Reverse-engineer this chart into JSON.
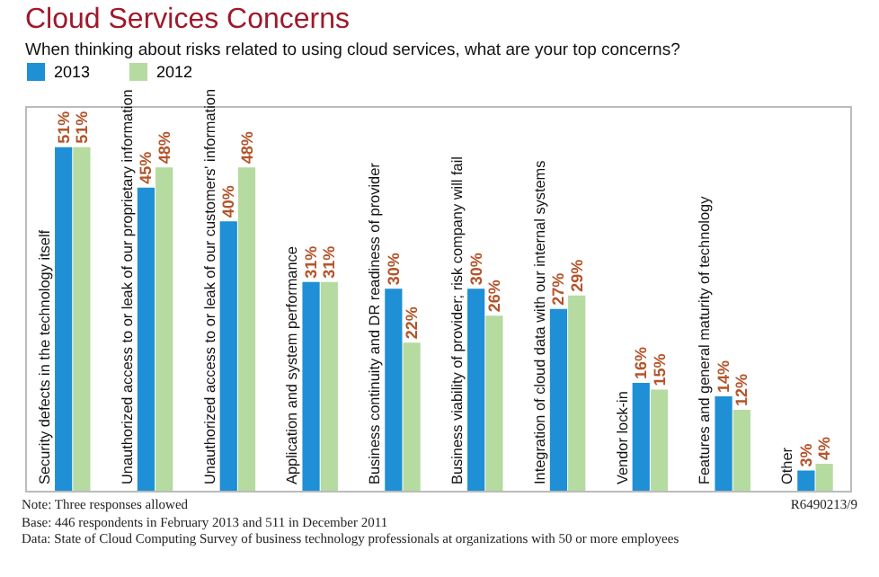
{
  "chart_data": {
    "type": "bar",
    "title": "Cloud Services Concerns",
    "subtitle": "When thinking about risks related to using cloud services, what are your top concerns?",
    "categories": [
      "Security defects in the technology itself",
      "Unauthorized access to or leak of our proprietary information",
      "Unauthorized access to or leak of our customers' information",
      "Application and system performance",
      "Business continuity and DR readiness of provider",
      "Business viability of provider; risk company will fail",
      "Integration of cloud data with our internal systems",
      "Vendor lock-in",
      "Features and general maturity of technology",
      "Other"
    ],
    "series": [
      {
        "name": "2013",
        "color": "#1f8fd6",
        "values": [
          51,
          45,
          40,
          31,
          30,
          30,
          27,
          16,
          14,
          3
        ],
        "value_labels": [
          "51%",
          "45%",
          "40%",
          "31%",
          "30%",
          "30%",
          "27%",
          "16%",
          "14%",
          "3%"
        ]
      },
      {
        "name": "2012",
        "color": "#b5dba0",
        "values": [
          51,
          48,
          48,
          31,
          22,
          26,
          29,
          15,
          12,
          4
        ],
        "value_labels": [
          "51%",
          "48%",
          "48%",
          "31%",
          "22%",
          "26%",
          "29%",
          "15%",
          "12%",
          "4%"
        ]
      }
    ],
    "legend": "top left",
    "annotations": [
      "Note: Three responses allowed",
      "Base: 446 respondents in February 2013 and 511 in December 2011",
      "Data: State of Cloud Computing Survey of business technology professionals at organizations with 50 or more employees",
      "R6490213/9"
    ]
  }
}
